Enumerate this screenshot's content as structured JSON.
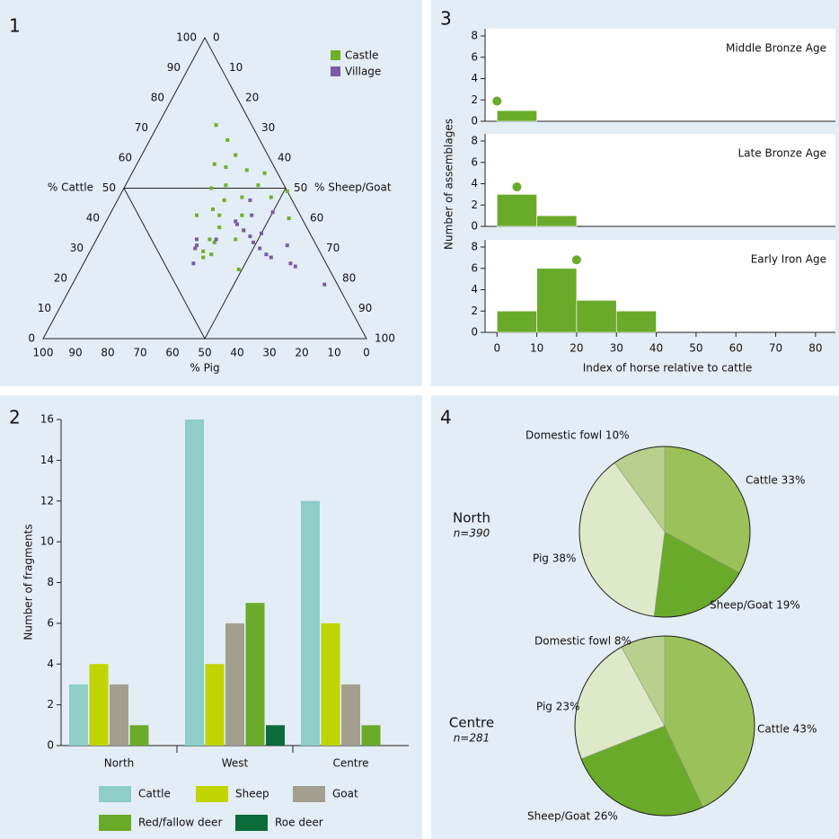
{
  "chart_data": [
    {
      "type": "ternary",
      "panel": "1",
      "axis_labels": [
        "% Cattle",
        "% Pig",
        "% Sheep/Goat"
      ],
      "cattle_ticks": [
        0,
        10,
        20,
        30,
        40,
        50,
        60,
        70,
        80,
        90,
        100
      ],
      "pig_ticks": [
        0,
        10,
        20,
        30,
        40,
        50,
        60,
        70,
        80,
        90,
        100
      ],
      "sheep_goat_ticks": [
        0,
        10,
        20,
        30,
        40,
        50,
        60,
        70,
        80,
        90,
        100
      ],
      "legend": "top right",
      "series": [
        {
          "name": "Castle",
          "color": "#72ad2b",
          "values": [
            [
              71,
              11,
              18
            ],
            [
              66,
              10,
              24
            ],
            [
              61,
              10,
              29
            ],
            [
              58,
              18,
              24
            ],
            [
              57,
              15,
              28
            ],
            [
              56,
              9,
              35
            ],
            [
              55,
              4,
              41
            ],
            [
              50,
              23,
              27
            ],
            [
              51,
              18,
              31
            ],
            [
              51,
              8,
              41
            ],
            [
              47,
              6,
              47
            ],
            [
              46,
              21,
              33
            ],
            [
              47,
              15,
              38
            ],
            [
              41,
              32,
              27
            ],
            [
              41,
              25,
              34
            ],
            [
              41,
              18,
              41
            ],
            [
              37,
              27,
              36
            ],
            [
              36,
              20,
              44
            ],
            [
              33,
              24,
              43
            ],
            [
              33,
              32,
              35
            ],
            [
              32,
              31,
              37
            ],
            [
              29,
              36,
              35
            ],
            [
              28,
              34,
              38
            ],
            [
              27,
              37,
              36
            ],
            [
              23,
              28,
              49
            ],
            [
              40,
              4,
              56
            ],
            [
              49,
              0,
              51
            ],
            [
              43,
              26,
              31
            ]
          ]
        },
        {
          "name": "Village",
          "color": "#7a5ba6",
          "values": [
            [
              39,
              21,
              40
            ],
            [
              46,
              13,
              41
            ],
            [
              41,
              15,
              44
            ],
            [
              36,
              20,
              44
            ],
            [
              34,
              19,
              47
            ],
            [
              35,
              15,
              50
            ],
            [
              30,
              18,
              52
            ],
            [
              27,
              16,
              57
            ],
            [
              31,
              9,
              60
            ],
            [
              25,
              11,
              64
            ],
            [
              24,
              10,
              66
            ],
            [
              18,
              4,
              78
            ],
            [
              31,
              37,
              32
            ],
            [
              30,
              38,
              32
            ],
            [
              33,
              36,
              31
            ],
            [
              25,
              41,
              34
            ],
            [
              33,
              30,
              37
            ],
            [
              42,
              8,
              50
            ],
            [
              32,
              19,
              49
            ],
            [
              28,
              17,
              55
            ],
            [
              38,
              21,
              41
            ]
          ]
        }
      ]
    },
    {
      "type": "histogram",
      "panel": "3",
      "xlabel": "Index of horse relative to cattle",
      "ylabel": "Number of assemblages",
      "xlim": [
        -3,
        85
      ],
      "xticks": [
        0,
        10,
        20,
        30,
        40,
        50,
        60,
        70,
        80
      ],
      "ylim": [
        0,
        8
      ],
      "yticks": [
        0,
        2,
        4,
        6,
        8
      ],
      "color": "#6aaa2a",
      "subplots": [
        {
          "title": "Middle Bronze Age",
          "bins": [
            0,
            10
          ],
          "counts": [
            1
          ],
          "marker_x": 0,
          "marker_y": 1.9
        },
        {
          "title": "Late Bronze Age",
          "bins": [
            0,
            10,
            20
          ],
          "counts": [
            3,
            1
          ],
          "marker_x": 5,
          "marker_y": 3.7
        },
        {
          "title": "Early Iron Age",
          "bins": [
            0,
            10,
            20,
            30,
            40
          ],
          "counts": [
            2,
            6,
            3,
            2
          ],
          "marker_x": 20,
          "marker_y": 6.8
        }
      ]
    },
    {
      "type": "bar",
      "panel": "2",
      "ylabel": "Number of fragments",
      "categories": [
        "North",
        "West",
        "Centre"
      ],
      "ylim": [
        0,
        16
      ],
      "yticks": [
        0,
        2,
        4,
        6,
        8,
        10,
        12,
        14,
        16
      ],
      "series": [
        {
          "name": "Cattle",
          "color": "#8ecdc8",
          "values": [
            3,
            16,
            12
          ]
        },
        {
          "name": "Sheep",
          "color": "#c0d400",
          "values": [
            4,
            4,
            6
          ]
        },
        {
          "name": "Goat",
          "color": "#a29f8f",
          "values": [
            3,
            6,
            3
          ]
        },
        {
          "name": "Red/fallow deer",
          "color": "#6aaa2a",
          "values": [
            1,
            7,
            1
          ]
        },
        {
          "name": "Roe deer",
          "color": "#0b6b3a",
          "values": [
            0,
            1,
            0
          ]
        }
      ]
    },
    {
      "type": "pie",
      "panel": "4",
      "colors": [
        "#9bc25a",
        "#6aaa2a",
        "#dde9c8",
        "#b8d08e"
      ],
      "pies": [
        {
          "title": "North",
          "subtitle": "n=390",
          "values": [
            33,
            19,
            38,
            10
          ],
          "value_labels": [
            "Cattle 33%",
            "Sheep/Goat 19%",
            "Pig 38%",
            "Domestic fowl 10%"
          ]
        },
        {
          "title": "Centre",
          "subtitle": "n=281",
          "values": [
            43,
            26,
            23,
            8
          ],
          "value_labels": [
            "Cattle 43%",
            "Sheep/Goat 26%",
            "Pig 23%",
            "Domestic fowl 8%"
          ]
        }
      ]
    }
  ]
}
